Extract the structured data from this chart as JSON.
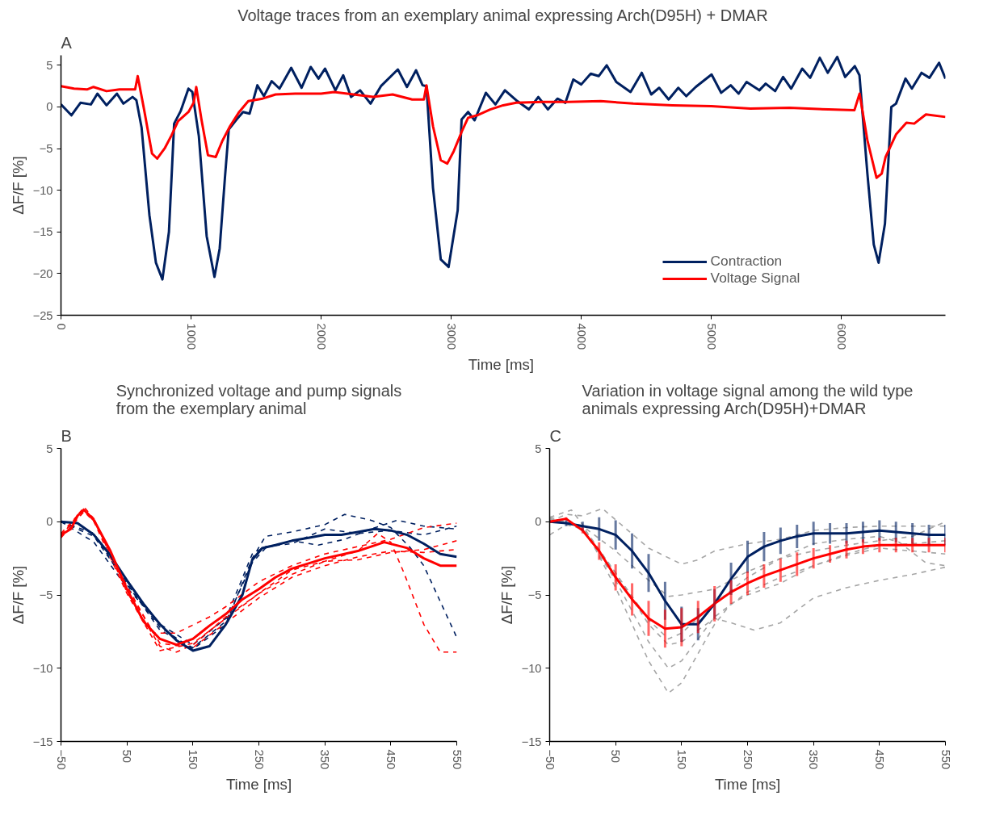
{
  "chart_data": [
    {
      "type": "line",
      "title": "Voltage traces from an exemplary animal expressing Arch(D95H) + DMAR",
      "xlabel": "Time  [ms]",
      "ylabel": "ΔF/F [%]",
      "annotations": [
        "A"
      ],
      "xlim": [
        0,
        6800
      ],
      "ylim": [
        -25,
        6.2
      ],
      "xticks": [
        0,
        1000,
        2000,
        3000,
        4000,
        5000,
        6000
      ],
      "yticks": [
        -25,
        -20,
        -15,
        -10,
        -5,
        0,
        5
      ],
      "legend": "bottom right",
      "series": [
        {
          "name": "Contraction",
          "color": "#002060",
          "x": [
            0,
            80,
            150,
            230,
            280,
            350,
            430,
            480,
            550,
            580,
            620,
            680,
            730,
            780,
            830,
            870,
            920,
            980,
            1010,
            1060,
            1120,
            1180,
            1220,
            1260,
            1290,
            1350,
            1400,
            1450,
            1510,
            1560,
            1620,
            1680,
            1770,
            1850,
            1920,
            1980,
            2030,
            2110,
            2170,
            2230,
            2300,
            2380,
            2460,
            2590,
            2660,
            2730,
            2780,
            2810,
            2860,
            2920,
            2980,
            3050,
            3080,
            3130,
            3180,
            3267,
            3340,
            3413,
            3500,
            3597,
            3670,
            3744,
            3817,
            3878,
            3939,
            4000,
            4073,
            4134,
            4196,
            4269,
            4379,
            4465,
            4538,
            4599,
            4672,
            4746,
            4807,
            4880,
            5002,
            5076,
            5149,
            5210,
            5271,
            5369,
            5418,
            5491,
            5552,
            5614,
            5699,
            5760,
            5834,
            5895,
            5968,
            6029,
            6103,
            6139,
            6200,
            6249,
            6286,
            6335,
            6384,
            6420,
            6493,
            6542,
            6616,
            6677,
            6751,
            6800
          ],
          "values": [
            0.3,
            -1.0,
            0.5,
            0.3,
            1.6,
            0.2,
            1.6,
            0.4,
            1.2,
            0.8,
            -2.5,
            -13,
            -18.7,
            -20.7,
            -15,
            -2,
            -0.5,
            2.2,
            1.8,
            -3.5,
            -15.5,
            -20.4,
            -17,
            -8.6,
            -2.7,
            -1.5,
            -0.6,
            -0.8,
            2.6,
            1.3,
            3.1,
            2.2,
            4.7,
            2.3,
            4.8,
            3.4,
            4.6,
            2,
            3.8,
            1.2,
            2,
            0.4,
            2.5,
            4.5,
            2.4,
            4.4,
            2.6,
            2.5,
            -9.7,
            -18.3,
            -19.2,
            -12.4,
            -1.5,
            -0.6,
            -1.6,
            1.7,
            0.3,
            2,
            0.8,
            -0.3,
            1.2,
            -0.3,
            1.0,
            0.5,
            3.3,
            2.7,
            4.0,
            3.7,
            5,
            3,
            1.8,
            4.1,
            1.5,
            2.3,
            0.9,
            2.3,
            1.3,
            2.4,
            3.9,
            1.7,
            2.6,
            1.6,
            3.0,
            2.0,
            2.8,
            1.9,
            3.6,
            2.2,
            4.6,
            3.5,
            5.9,
            4.1,
            6,
            3.6,
            4.9,
            3.8,
            -8,
            -16.5,
            -18.7,
            -14,
            0,
            0.4,
            3.4,
            2.2,
            4.1,
            3.5,
            5.3,
            3.4
          ]
        },
        {
          "name": "Voltage Signal",
          "color": "#ff0000",
          "x": [
            0,
            100,
            200,
            250,
            350,
            450,
            570,
            590,
            640,
            700,
            740,
            800,
            850,
            900,
            980,
            1020,
            1040,
            1080,
            1130,
            1190,
            1240,
            1300,
            1370,
            1440,
            1550,
            1650,
            1800,
            2000,
            2100,
            2250,
            2400,
            2550,
            2700,
            2790,
            2810,
            2860,
            2920,
            2970,
            3020,
            3080,
            3130,
            3200,
            3300,
            3400,
            3500,
            3700,
            3900,
            4150,
            4400,
            4700,
            5000,
            5300,
            5600,
            5900,
            6100,
            6140,
            6200,
            6270,
            6310,
            6340,
            6420,
            6500,
            6560,
            6650,
            6800
          ],
          "values": [
            2.5,
            2.2,
            2.1,
            2.4,
            1.9,
            2.1,
            2.1,
            3.7,
            -0.4,
            -5.6,
            -6.2,
            -4.9,
            -3.4,
            -1.7,
            -0.6,
            0.5,
            2.4,
            -1.5,
            -5.8,
            -6,
            -4.1,
            -2.3,
            -0.6,
            0.7,
            1.0,
            1.5,
            1.6,
            1.6,
            1.8,
            1.5,
            1.2,
            1.5,
            0.9,
            0.9,
            2.6,
            -2.3,
            -6.4,
            -6.8,
            -5.3,
            -3,
            -1.3,
            -1.0,
            -0.3,
            0.2,
            0.5,
            0.6,
            0.6,
            0.7,
            0.4,
            0.2,
            0.1,
            -0.2,
            -0.1,
            -0.3,
            -0.4,
            1.6,
            -4,
            -8.5,
            -8,
            -6,
            -3.3,
            -1.9,
            -2.0,
            -0.9,
            -1.2
          ]
        }
      ]
    },
    {
      "type": "line",
      "title": "Synchronized voltage and pump signals\nfrom the exemplary animal",
      "xlabel": "Time [ms]",
      "ylabel": "ΔF/F [%]",
      "annotations": [
        "B"
      ],
      "xlim": [
        -50,
        550
      ],
      "ylim": [
        -15,
        5
      ],
      "xticks": [
        -50,
        50,
        150,
        250,
        350,
        450,
        550
      ],
      "yticks": [
        -15,
        -10,
        -5,
        0,
        5
      ],
      "series": [
        {
          "color": "#002060",
          "line_style": "dashed",
          "x": [
            -50,
            0,
            50,
            100,
            150,
            200,
            240,
            260,
            300,
            350,
            380,
            420,
            450,
            480,
            500,
            550
          ],
          "values": [
            0,
            -0.8,
            -4.3,
            -7.2,
            -8.7,
            -7.0,
            -2.5,
            -1.0,
            -0.7,
            -0.2,
            0.5,
            0.1,
            -0.4,
            -1.8,
            -3.0,
            -7.9
          ]
        },
        {
          "color": "#002060",
          "line_style": "dashed",
          "x": [
            -50,
            0,
            50,
            100,
            150,
            200,
            240,
            260,
            300,
            340,
            380,
            420,
            460,
            500,
            550
          ],
          "values": [
            0,
            -1.0,
            -4.2,
            -7.4,
            -8.6,
            -6.8,
            -2.8,
            -1.8,
            -1.3,
            -1.6,
            -1.2,
            -0.5,
            0.1,
            -0.3,
            -0.5
          ]
        },
        {
          "color": "#002060",
          "line_style": "dashed",
          "x": [
            -50,
            0,
            50,
            100,
            150,
            200,
            240,
            260,
            300,
            350,
            400,
            450,
            500,
            550
          ],
          "values": [
            0,
            -1.4,
            -4.5,
            -7.0,
            -8.4,
            -6.6,
            -2.2,
            -1.7,
            -1.5,
            -0.5,
            -0.8,
            -0.6,
            -0.9,
            -0.3
          ]
        },
        {
          "color": "#ff0000",
          "line_style": "dashed",
          "x": [
            -50,
            -15,
            0,
            50,
            100,
            125,
            150,
            200,
            250,
            300,
            350,
            400,
            430,
            450,
            470,
            500,
            525,
            550
          ],
          "values": [
            -1.0,
            1.0,
            0.2,
            -4.8,
            -8.5,
            -8.9,
            -8.4,
            -6.5,
            -4.9,
            -3.3,
            -2.7,
            -2.0,
            -0.8,
            -1.4,
            -3.5,
            -7.0,
            -8.9,
            -8.9
          ]
        },
        {
          "color": "#ff0000",
          "line_style": "dashed",
          "x": [
            -50,
            -15,
            0,
            50,
            90,
            125,
            175,
            200,
            250,
            300,
            350,
            400,
            450,
            500,
            550
          ],
          "values": [
            -0.8,
            0.9,
            0.1,
            -4.4,
            -7.6,
            -7.6,
            -6.5,
            -5.8,
            -4.1,
            -3.0,
            -2.2,
            -1.7,
            -1.2,
            -0.4,
            -0.1
          ]
        },
        {
          "color": "#ff0000",
          "line_style": "dashed",
          "x": [
            -50,
            -15,
            0,
            50,
            100,
            150,
            200,
            250,
            300,
            350,
            400,
            450,
            500,
            550
          ],
          "values": [
            -1.1,
            0.7,
            0,
            -4.9,
            -8.8,
            -8.3,
            -6.6,
            -4.9,
            -3.6,
            -2.7,
            -2.6,
            -2.1,
            -1.9,
            -1.3
          ]
        },
        {
          "color": "#ff0000",
          "line_style": "dashed",
          "x": [
            -50,
            -15,
            0,
            50,
            100,
            150,
            200,
            250,
            300,
            350,
            400,
            450,
            500,
            550
          ],
          "values": [
            -0.9,
            0.8,
            0.2,
            -4.6,
            -8.3,
            -8.6,
            -6.9,
            -5.2,
            -3.8,
            -3.0,
            -2.4,
            -2.0,
            -2.1,
            -1.9
          ]
        },
        {
          "color": "#002060",
          "line_style": "solid",
          "x": [
            -50,
            -25,
            0,
            25,
            50,
            75,
            100,
            125,
            150,
            175,
            200,
            225,
            240,
            255,
            275,
            300,
            325,
            350,
            375,
            400,
            425,
            450,
            475,
            500,
            525,
            550
          ],
          "values": [
            0,
            -0.1,
            -0.9,
            -2.3,
            -4.0,
            -5.6,
            -7.0,
            -8.1,
            -8.8,
            -8.5,
            -7.0,
            -5.0,
            -2.6,
            -1.8,
            -1.6,
            -1.3,
            -1.1,
            -0.9,
            -0.9,
            -0.7,
            -0.5,
            -0.6,
            -0.9,
            -1.5,
            -2.2,
            -2.4
          ]
        },
        {
          "color": "#ff0000",
          "line_style": "solid",
          "x": [
            -50,
            -35,
            -25,
            -15,
            0,
            25,
            50,
            75,
            100,
            125,
            150,
            175,
            200,
            225,
            250,
            275,
            300,
            350,
            400,
            440,
            475,
            500,
            525,
            550
          ],
          "values": [
            -0.9,
            -0.5,
            0.4,
            0.8,
            0.1,
            -2.0,
            -4.6,
            -6.8,
            -8.0,
            -8.4,
            -8.0,
            -7.1,
            -6.3,
            -5.3,
            -4.6,
            -3.8,
            -3.2,
            -2.5,
            -2.0,
            -1.4,
            -1.8,
            -2.5,
            -3.0,
            -3.0
          ]
        }
      ]
    },
    {
      "type": "line",
      "title": "Variation in voltage signal among the wild type\nanimals expressing Arch(D95H)+DMAR",
      "xlabel": "Time [ms]",
      "ylabel": "ΔF/F [%]",
      "annotations": [
        "C"
      ],
      "xlim": [
        -50,
        550
      ],
      "ylim": [
        -15,
        5
      ],
      "xticks": [
        -50,
        50,
        150,
        250,
        350,
        450,
        550
      ],
      "yticks": [
        -15,
        -10,
        -5,
        0,
        5
      ],
      "series": [
        {
          "color": "#a6a6a6",
          "line_style": "dashed",
          "x": [
            -50,
            -25,
            0,
            30,
            100,
            150,
            175,
            200,
            250,
            300,
            350,
            400,
            450,
            500,
            550
          ],
          "values": [
            0,
            0.5,
            0.4,
            0.9,
            -1.8,
            -2.9,
            -2.6,
            -2.0,
            -1.5,
            -1.2,
            -0.6,
            -0.4,
            -0.3,
            -0.3,
            -0.3
          ]
        },
        {
          "color": "#a6a6a6",
          "line_style": "dashed",
          "x": [
            -50,
            -17,
            0,
            50,
            100,
            130,
            150,
            200,
            225,
            250,
            300,
            350,
            400,
            450,
            500,
            550
          ],
          "values": [
            0.3,
            0.8,
            -0.2,
            -4.5,
            -9.5,
            -11.7,
            -11.0,
            -7.0,
            -5.6,
            -5.0,
            -4.2,
            -3.0,
            -2.3,
            -1.8,
            -2.0,
            -2.2
          ]
        },
        {
          "color": "#a6a6a6",
          "line_style": "dashed",
          "x": [
            -50,
            -25,
            0,
            50,
            100,
            130,
            150,
            200,
            250,
            300,
            350,
            400,
            450,
            500,
            550
          ],
          "values": [
            -0.9,
            -0.2,
            -0.5,
            -4.0,
            -8.2,
            -10.0,
            -9.5,
            -6.5,
            -4.8,
            -3.8,
            -3.0,
            -2.2,
            -1.6,
            -1.5,
            -1.3
          ]
        },
        {
          "color": "#a6a6a6",
          "line_style": "dashed",
          "x": [
            -50,
            0,
            50,
            100,
            130,
            150,
            200,
            225,
            260,
            300,
            350,
            400,
            450,
            500,
            550
          ],
          "values": [
            0.2,
            -0.3,
            -3.5,
            -7.0,
            -8.4,
            -8.2,
            -6.6,
            -6.9,
            -7.4,
            -6.9,
            -5.2,
            -4.5,
            -4.0,
            -3.6,
            -3.1
          ]
        },
        {
          "color": "#a6a6a6",
          "line_style": "dashed",
          "x": [
            -50,
            0,
            50,
            100,
            130,
            150,
            200,
            250,
            300,
            350,
            400,
            450,
            500,
            550
          ],
          "values": [
            0.3,
            -0.3,
            -2.0,
            -4.0,
            -5.1,
            -5.0,
            -4.6,
            -3.4,
            -2.5,
            -2.0,
            -1.6,
            -1.3,
            -1.0,
            0.0
          ]
        },
        {
          "color": "#a6a6a6",
          "line_style": "dashed",
          "x": [
            -50,
            0,
            50,
            100,
            130,
            150,
            200,
            250,
            300,
            350,
            400,
            450,
            480,
            520,
            550
          ],
          "values": [
            0.2,
            -0.4,
            -3.5,
            -6.7,
            -8.0,
            -7.6,
            -5.6,
            -3.8,
            -2.5,
            -1.5,
            -1.2,
            -1.0,
            -1.4,
            -2.8,
            -3.0
          ]
        },
        {
          "color": "#002060",
          "line_style": "solid",
          "x": [
            -50,
            -25,
            0,
            25,
            50,
            75,
            100,
            125,
            150,
            175,
            200,
            225,
            250,
            275,
            300,
            325,
            350,
            375,
            400,
            425,
            450,
            475,
            500,
            525,
            550
          ],
          "values": [
            0,
            -0.1,
            -0.3,
            -0.5,
            -0.9,
            -2.0,
            -3.5,
            -5.4,
            -7.0,
            -7.0,
            -5.6,
            -3.9,
            -2.4,
            -1.7,
            -1.3,
            -1.0,
            -0.8,
            -0.8,
            -0.8,
            -0.7,
            -0.6,
            -0.7,
            -0.8,
            -0.9,
            -0.9
          ],
          "errors": [
            0.1,
            0.2,
            0.3,
            0.8,
            1.0,
            1.2,
            1.3,
            1.3,
            1.2,
            1.1,
            1.0,
            1.1,
            1.1,
            1.0,
            0.9,
            0.8,
            0.8,
            0.7,
            0.7,
            0.7,
            0.7,
            0.7,
            0.7,
            0.7,
            0.7
          ]
        },
        {
          "color": "#ff0000",
          "line_style": "solid",
          "x": [
            -50,
            -25,
            0,
            25,
            50,
            75,
            100,
            125,
            150,
            175,
            200,
            225,
            250,
            275,
            300,
            325,
            350,
            375,
            400,
            425,
            450,
            475,
            500,
            525,
            550
          ],
          "values": [
            0,
            0.2,
            -0.6,
            -2.0,
            -3.8,
            -5.3,
            -6.6,
            -7.3,
            -7.2,
            -6.5,
            -5.6,
            -4.8,
            -4.2,
            -3.7,
            -3.3,
            -2.9,
            -2.5,
            -2.2,
            -1.9,
            -1.7,
            -1.6,
            -1.6,
            -1.6,
            -1.6,
            -1.6
          ],
          "errors": [
            0.1,
            0.1,
            0.2,
            0.6,
            0.9,
            1.1,
            1.2,
            1.3,
            1.3,
            1.1,
            1.2,
            0.8,
            0.8,
            0.8,
            0.8,
            0.8,
            0.7,
            0.6,
            0.6,
            0.5,
            0.5,
            0.5,
            0.5,
            0.5,
            0.5
          ]
        }
      ]
    }
  ]
}
